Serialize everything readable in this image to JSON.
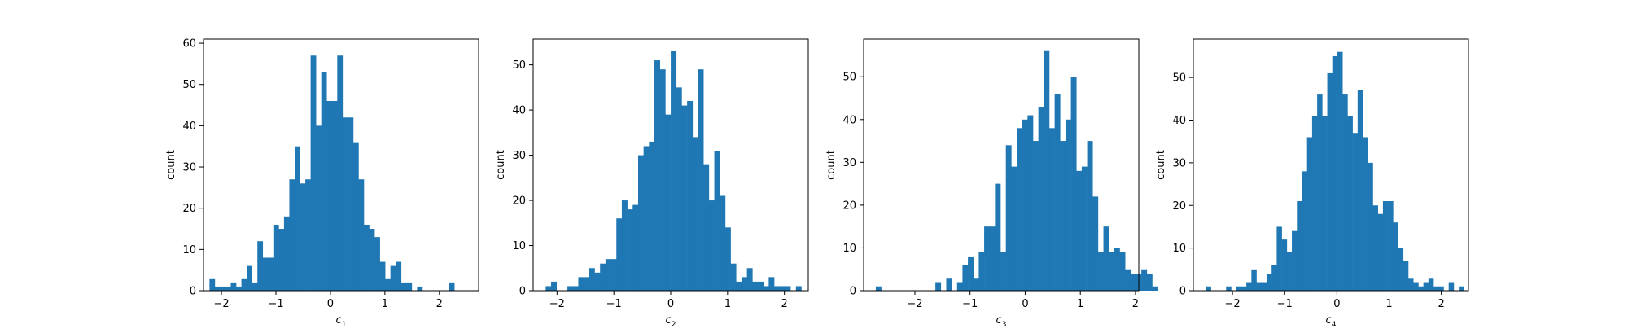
{
  "style": {
    "bar_color": "#1f77b4",
    "frame_color": "#000000",
    "background": "#ffffff"
  },
  "chart_data": [
    {
      "type": "bar",
      "xlabel_base": "c",
      "xlabel_sub": "1",
      "ylabel": "count",
      "xlim": [
        -2.33,
        2.72
      ],
      "ylim": [
        0,
        61
      ],
      "xticks": [
        -2,
        -1,
        0,
        1,
        2
      ],
      "xtick_labels": [
        "−2",
        "−1",
        "0",
        "1",
        "2"
      ],
      "yticks": [
        0,
        10,
        20,
        30,
        40,
        50,
        60
      ],
      "ytick_labels": [
        "0",
        "10",
        "20",
        "30",
        "40",
        "50",
        "60"
      ],
      "bin_start": -2.22,
      "bin_width": 0.0977,
      "values": [
        3,
        1,
        1,
        1,
        2,
        1,
        3,
        6,
        2,
        12,
        8,
        8,
        16,
        15,
        18,
        27,
        35,
        26,
        27,
        57,
        40,
        53,
        46,
        46,
        57,
        42,
        42,
        36,
        27,
        16,
        15,
        13,
        7,
        3,
        6,
        7,
        2,
        2,
        0,
        1,
        0,
        0,
        0,
        0,
        0,
        2
      ]
    },
    {
      "type": "bar",
      "xlabel_base": "c",
      "xlabel_sub": "2",
      "ylabel": "count",
      "xlim": [
        -2.42,
        2.42
      ],
      "ylim": [
        0,
        55.7
      ],
      "xticks": [
        -2,
        -1,
        0,
        1,
        2
      ],
      "xtick_labels": [
        "−2",
        "−1",
        "0",
        "1",
        "2"
      ],
      "yticks": [
        0,
        10,
        20,
        30,
        40,
        50
      ],
      "ytick_labels": [
        "0",
        "10",
        "20",
        "30",
        "40",
        "50"
      ],
      "bin_start": -2.2,
      "bin_width": 0.0957,
      "values": [
        1,
        2,
        0,
        0,
        1,
        1,
        3,
        3,
        5,
        4,
        6,
        7,
        7,
        16,
        20,
        18,
        19,
        30,
        32,
        33,
        51,
        49,
        39,
        53,
        45,
        41,
        42,
        34,
        49,
        28,
        20,
        31,
        21,
        14,
        6,
        2,
        3,
        5,
        2,
        2,
        1,
        3,
        1,
        1,
        1,
        0,
        1
      ]
    },
    {
      "type": "bar",
      "xlabel_base": "c",
      "xlabel_sub": "3",
      "ylabel": "count",
      "xlim": [
        -2.93,
        2.06
      ],
      "ylim": [
        0,
        58.8
      ],
      "xticks": [
        -2,
        -1,
        0,
        1,
        2
      ],
      "xtick_labels": [
        "−2",
        "−1",
        "0",
        "1",
        "2"
      ],
      "yticks": [
        0,
        10,
        20,
        30,
        40,
        50
      ],
      "ytick_labels": [
        "0",
        "10",
        "20",
        "30",
        "40",
        "50"
      ],
      "bin_start": -2.71,
      "bin_width": 0.0983,
      "values": [
        1,
        0,
        0,
        0,
        0,
        0,
        0,
        0,
        0,
        0,
        0,
        2,
        0,
        3,
        0,
        2,
        6,
        8,
        3,
        9,
        15,
        15,
        25,
        9,
        34,
        29,
        38,
        40,
        41,
        35,
        43,
        56,
        38,
        46,
        35,
        40,
        50,
        28,
        29,
        35,
        22,
        9,
        15,
        9,
        10,
        9,
        5,
        4,
        4,
        5,
        4,
        1
      ]
    },
    {
      "type": "bar",
      "xlabel_base": "c",
      "xlabel_sub": "4",
      "ylabel": "count",
      "xlim": [
        -2.75,
        2.52
      ],
      "ylim": [
        0,
        59
      ],
      "xticks": [
        -2,
        -1,
        0,
        1,
        2
      ],
      "xtick_labels": [
        "−2",
        "−1",
        "0",
        "1",
        "2"
      ],
      "yticks": [
        0,
        10,
        20,
        30,
        40,
        50
      ],
      "ytick_labels": [
        "0",
        "10",
        "20",
        "30",
        "40",
        "50"
      ],
      "bin_start": -2.51,
      "bin_width": 0.0969,
      "values": [
        1,
        0,
        0,
        0,
        1,
        0,
        1,
        1,
        2,
        5,
        2,
        2,
        4,
        6,
        15,
        12,
        9,
        14,
        21,
        28,
        36,
        41,
        46,
        41,
        51,
        55,
        56,
        46,
        41,
        37,
        47,
        36,
        30,
        20,
        18,
        21,
        21,
        16,
        10,
        7,
        3,
        2,
        1,
        2,
        3,
        1,
        1,
        0,
        2,
        0,
        1
      ]
    }
  ]
}
